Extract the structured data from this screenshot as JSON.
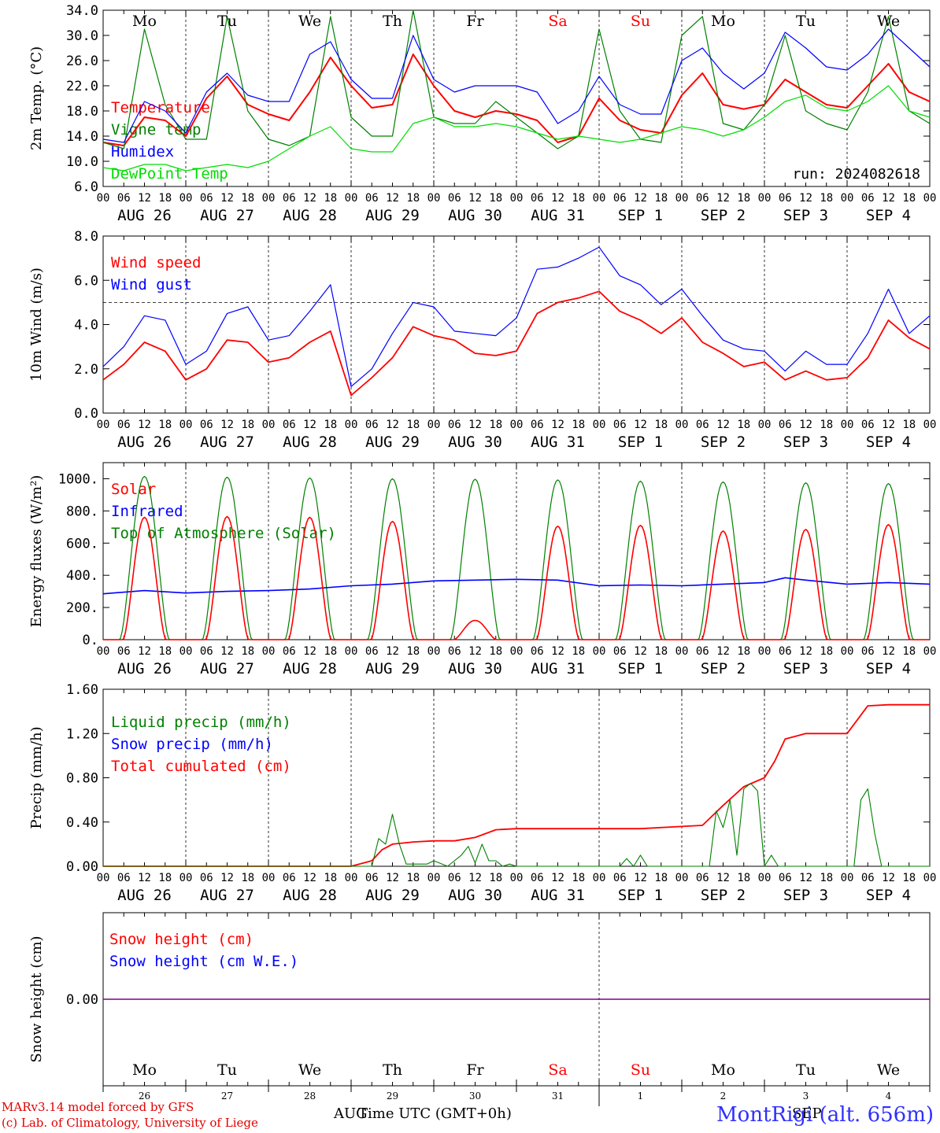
{
  "run_label": "run: 2024082618",
  "station": "MontRigi (alt. 656m)",
  "footer": {
    "line1": "MARv3.14 model forced by GFS",
    "line2": "(c) Lab. of Climatology, University of Liege",
    "time_axis": "Time UTC (GMT+0h)",
    "month_left": "AUG",
    "month_right": "SEP"
  },
  "colors": {
    "red": "#ff0000",
    "green": "#008000",
    "blue": "#0000ff",
    "lightgreen": "#00dd00",
    "purple": "#800080"
  },
  "day_names": [
    "Mo",
    "Tu",
    "We",
    "Th",
    "Fr",
    "Sa",
    "Su",
    "Mo",
    "Tu",
    "We"
  ],
  "day_name_colors": [
    "#000",
    "#000",
    "#000",
    "#000",
    "#000",
    "#ff0000",
    "#ff0000",
    "#000",
    "#000",
    "#000"
  ],
  "date_labels": [
    "AUG 26",
    "AUG 27",
    "AUG 28",
    "AUG 29",
    "AUG 30",
    "AUG 31",
    "SEP  1",
    "SEP  2",
    "SEP  3",
    "SEP  4"
  ],
  "day_numbers": [
    "26",
    "27",
    "28",
    "29",
    "30",
    "31",
    "1",
    "2",
    "3",
    "4"
  ],
  "hour_ticks": [
    "00",
    "06",
    "12",
    "18"
  ],
  "chart_data": [
    {
      "id": "temp",
      "type": "line",
      "ylabel": "2m Temp. (°C)",
      "ylim": [
        6,
        34
      ],
      "yticks": [
        "6.0",
        "10.0",
        "14.0",
        "18.0",
        "22.0",
        "26.0",
        "30.0",
        "34.0"
      ],
      "ytick_values": [
        6,
        10,
        14,
        18,
        22,
        26,
        30,
        34
      ],
      "legend": [
        {
          "name": "Temperature",
          "color": "#ff0000"
        },
        {
          "name": "Vigne temp",
          "color": "#008000"
        },
        {
          "name": "Humidex",
          "color": "#0000ff"
        },
        {
          "name": "DewPoint Temp",
          "color": "#00dd00"
        }
      ],
      "x_hours": [
        0,
        6,
        12,
        18,
        24,
        30,
        36,
        42,
        48,
        54,
        60,
        66,
        72,
        78,
        84,
        90,
        96,
        102,
        108,
        114,
        120,
        126,
        132,
        138,
        144,
        150,
        156,
        162,
        168,
        174,
        180,
        186,
        192,
        198,
        204,
        210,
        216,
        222,
        228,
        234,
        240
      ],
      "series": [
        {
          "name": "Temperature",
          "color": "#ff0000",
          "values": [
            13,
            12.5,
            17,
            16.5,
            14,
            20,
            23.5,
            19,
            17.5,
            16.5,
            21,
            26.5,
            22,
            18.5,
            19,
            27,
            22,
            18,
            17,
            18,
            17.5,
            16.5,
            13,
            14,
            20,
            16.5,
            15,
            14.5,
            20.5,
            24,
            19,
            18.3,
            19,
            23,
            21,
            19,
            18.5,
            22,
            25.5,
            21,
            19.5
          ]
        },
        {
          "name": "Vigne temp",
          "color": "#008000",
          "values": [
            13,
            12,
            31,
            19,
            13.5,
            13.5,
            33,
            18,
            13.5,
            12.5,
            14,
            33,
            17,
            14,
            14,
            34,
            17,
            16,
            16,
            19.5,
            17,
            14.5,
            12,
            14,
            31,
            18,
            13.5,
            13,
            30,
            33,
            16,
            15,
            19,
            30,
            18,
            16,
            15,
            21,
            33,
            18,
            16
          ]
        },
        {
          "name": "Humidex",
          "color": "#0000ff",
          "values": [
            13.5,
            13,
            19.5,
            18,
            14.5,
            21,
            24,
            20.5,
            19.5,
            19.5,
            27,
            29,
            23,
            20,
            20,
            30,
            23,
            21,
            22,
            22,
            22,
            21,
            16,
            18,
            23.5,
            19,
            17.5,
            17.5,
            26,
            28,
            24,
            21.5,
            24,
            30.5,
            28,
            25,
            24.5,
            27,
            31,
            28,
            25
          ]
        },
        {
          "name": "DewPoint Temp",
          "color": "#00dd00",
          "values": [
            9,
            8.5,
            9.5,
            9.5,
            8.5,
            9,
            9.5,
            9,
            10,
            12,
            14,
            15.5,
            12,
            11.5,
            11.5,
            16,
            17,
            15.5,
            15.5,
            16,
            15.5,
            14.5,
            13.5,
            14,
            13.5,
            13,
            13.5,
            14.5,
            15.5,
            15,
            14,
            15,
            17,
            19.5,
            20.5,
            18.5,
            18,
            19.5,
            22,
            18,
            17
          ]
        }
      ]
    },
    {
      "id": "wind",
      "type": "line",
      "ylabel": "10m Wind (m/s)",
      "ylim": [
        0,
        8
      ],
      "yticks": [
        "0.0",
        "2.0",
        "4.0",
        "6.0",
        "8.0"
      ],
      "ytick_values": [
        0,
        2,
        4,
        6,
        8
      ],
      "legend": [
        {
          "name": "Wind speed",
          "color": "#ff0000"
        },
        {
          "name": "Wind gust",
          "color": "#0000ff"
        }
      ],
      "x_hours": [
        0,
        6,
        12,
        18,
        24,
        30,
        36,
        42,
        48,
        54,
        60,
        66,
        72,
        78,
        84,
        90,
        96,
        102,
        108,
        114,
        120,
        126,
        132,
        138,
        144,
        150,
        156,
        162,
        168,
        174,
        180,
        186,
        192,
        198,
        204,
        210,
        216,
        222,
        228,
        234,
        240
      ],
      "series": [
        {
          "name": "Wind speed",
          "color": "#ff0000",
          "values": [
            1.5,
            2.2,
            3.2,
            2.8,
            1.5,
            2.0,
            3.3,
            3.2,
            2.3,
            2.5,
            3.2,
            3.7,
            0.8,
            1.6,
            2.5,
            3.9,
            3.5,
            3.3,
            2.7,
            2.6,
            2.8,
            4.5,
            5.0,
            5.2,
            5.5,
            4.6,
            4.2,
            3.6,
            4.3,
            3.2,
            2.7,
            2.1,
            2.3,
            1.5,
            1.9,
            1.5,
            1.6,
            2.5,
            4.2,
            3.4,
            2.9
          ]
        },
        {
          "name": "Wind gust",
          "color": "#0000ff",
          "values": [
            2.1,
            3.0,
            4.4,
            4.2,
            2.2,
            2.8,
            4.5,
            4.8,
            3.3,
            3.5,
            4.6,
            5.8,
            1.2,
            2.0,
            3.6,
            5.0,
            4.8,
            3.7,
            3.6,
            3.5,
            4.3,
            6.5,
            6.6,
            7.0,
            7.5,
            6.2,
            5.8,
            4.9,
            5.6,
            4.4,
            3.3,
            2.9,
            2.8,
            1.9,
            2.8,
            2.2,
            2.2,
            3.6,
            5.6,
            3.6,
            4.4
          ]
        }
      ]
    },
    {
      "id": "energy",
      "type": "line",
      "ylabel": "Energy fluxes (W/m²)",
      "ylim": [
        0,
        1100
      ],
      "yticks": [
        "0.",
        "200.",
        "400.",
        "600.",
        "800.",
        "1000."
      ],
      "ytick_values": [
        0,
        200,
        400,
        600,
        800,
        1000
      ],
      "legend": [
        {
          "name": "Solar",
          "color": "#ff0000"
        },
        {
          "name": "Infrared",
          "color": "#0000ff"
        },
        {
          "name": "Top of Atmosphere (Solar)",
          "color": "#008000"
        }
      ],
      "toa_peaks": [
        1015,
        1010,
        1005,
        1000,
        997,
        993,
        985,
        980,
        975,
        970
      ],
      "solar_peaks": [
        760,
        765,
        760,
        735,
        120,
        705,
        710,
        675,
        685,
        715
      ],
      "ir_x_hours": [
        0,
        12,
        24,
        36,
        48,
        60,
        72,
        84,
        96,
        108,
        120,
        132,
        144,
        156,
        168,
        180,
        192,
        198,
        204,
        216,
        228,
        240
      ],
      "ir_values": [
        285,
        305,
        290,
        300,
        305,
        315,
        335,
        345,
        365,
        370,
        375,
        370,
        335,
        340,
        335,
        345,
        355,
        385,
        370,
        345,
        355,
        345
      ]
    },
    {
      "id": "precip",
      "type": "line",
      "ylabel": "Precip (mm/h)",
      "ylim": [
        0,
        1.6
      ],
      "yticks": [
        "0.00",
        "0.40",
        "0.80",
        "1.20",
        "1.60"
      ],
      "ytick_values": [
        0,
        0.4,
        0.8,
        1.2,
        1.6
      ],
      "legend": [
        {
          "name": "Liquid precip (mm/h)",
          "color": "#008000"
        },
        {
          "name": "Snow precip (mm/h)",
          "color": "#0000ff"
        },
        {
          "name": "Total cumulated (cm)",
          "color": "#ff0000"
        }
      ],
      "series": [
        {
          "name": "Total cumulated (cm)",
          "color": "#ff0000",
          "x": [
            0,
            72,
            78,
            81,
            84,
            87,
            90,
            96,
            102,
            108,
            114,
            120,
            132,
            156,
            168,
            174,
            180,
            186,
            192,
            195,
            198,
            204,
            210,
            216,
            222,
            228,
            231,
            234,
            240
          ],
          "values": [
            0,
            0,
            0.05,
            0.15,
            0.2,
            0.21,
            0.22,
            0.23,
            0.23,
            0.26,
            0.33,
            0.34,
            0.34,
            0.34,
            0.36,
            0.37,
            0.55,
            0.72,
            0.8,
            0.95,
            1.15,
            1.2,
            1.2,
            1.2,
            1.45,
            1.46,
            1.46,
            1.46,
            1.46
          ]
        },
        {
          "name": "Liquid precip (mm/h)",
          "color": "#008000",
          "x": [
            0,
            78,
            80,
            82,
            84,
            86,
            88,
            90,
            94,
            96,
            100,
            104,
            106,
            108,
            110,
            112,
            114,
            116,
            118,
            120,
            122,
            150,
            152,
            154,
            156,
            158,
            160,
            176,
            178,
            180,
            182,
            184,
            186,
            188,
            190,
            192,
            194,
            196,
            198,
            200,
            202,
            204,
            206,
            218,
            220,
            222,
            224,
            226,
            240
          ],
          "values": [
            0,
            0,
            0.25,
            0.2,
            0.47,
            0.2,
            0.02,
            0.02,
            0.02,
            0.05,
            0,
            0.1,
            0.18,
            0.03,
            0.2,
            0.05,
            0.05,
            0,
            0.02,
            0,
            0,
            0,
            0.07,
            0,
            0.1,
            0,
            0,
            0,
            0.5,
            0.35,
            0.6,
            0.1,
            0.7,
            0.75,
            0.68,
            0,
            0.1,
            0,
            0,
            0,
            0,
            0,
            0,
            0,
            0.6,
            0.7,
            0.3,
            0,
            0
          ]
        }
      ]
    },
    {
      "id": "snow",
      "type": "line",
      "ylabel": "Snow height (cm)",
      "ylim": [
        -1,
        1
      ],
      "yticks": [
        "0.00"
      ],
      "ytick_values": [
        0
      ],
      "legend": [
        {
          "name": "Snow height (cm)",
          "color": "#ff0000"
        },
        {
          "name": "Snow height (cm W.E.)",
          "color": "#0000ff"
        }
      ],
      "values_constant": 0
    }
  ]
}
